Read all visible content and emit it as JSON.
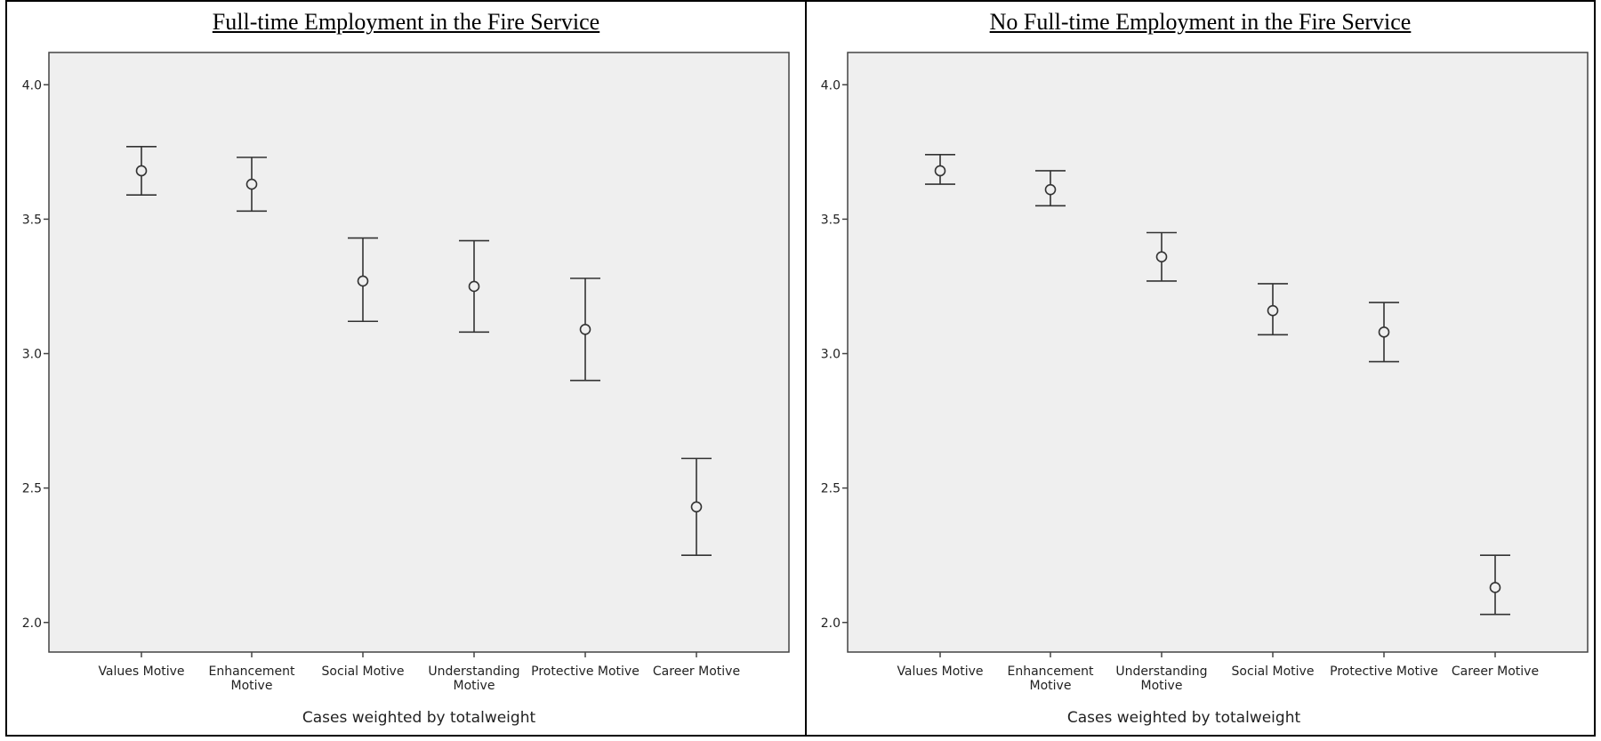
{
  "chart_data": [
    {
      "type": "errorbar",
      "title": "Full-time Employment in the Fire Service",
      "xlabel": "",
      "ylabel": "",
      "footnote": "Cases weighted by totalweight",
      "ylim": [
        1.89,
        4.12
      ],
      "yticks": [
        "2.0",
        "2.5",
        "3.0",
        "3.5",
        "4.0"
      ],
      "ytick_values": [
        2.0,
        2.5,
        3.0,
        3.5,
        4.0
      ],
      "categories": [
        [
          "Values Motive"
        ],
        [
          "Enhancement",
          "Motive"
        ],
        [
          "Social Motive"
        ],
        [
          "Understanding",
          "Motive"
        ],
        [
          "Protective Motive"
        ],
        [
          "Career Motive"
        ]
      ],
      "means": [
        3.68,
        3.63,
        3.27,
        3.25,
        3.09,
        2.43
      ],
      "lower": [
        3.59,
        3.53,
        3.12,
        3.08,
        2.9,
        2.25
      ],
      "upper": [
        3.77,
        3.73,
        3.43,
        3.42,
        3.28,
        2.61
      ],
      "grid": false,
      "plot_background": "#efefef"
    },
    {
      "type": "errorbar",
      "title": "No Full-time Employment in the Fire Service",
      "xlabel": "",
      "ylabel": "",
      "footnote": "Cases weighted by totalweight",
      "ylim": [
        1.89,
        4.12
      ],
      "yticks": [
        "2.0",
        "2.5",
        "3.0",
        "3.5",
        "4.0"
      ],
      "ytick_values": [
        2.0,
        2.5,
        3.0,
        3.5,
        4.0
      ],
      "categories": [
        [
          "Values Motive"
        ],
        [
          "Enhancement",
          "Motive"
        ],
        [
          "Understanding",
          "Motive"
        ],
        [
          "Social Motive"
        ],
        [
          "Protective Motive"
        ],
        [
          "Career Motive"
        ]
      ],
      "means": [
        3.68,
        3.61,
        3.36,
        3.16,
        3.08,
        2.13
      ],
      "lower": [
        3.63,
        3.55,
        3.27,
        3.07,
        2.97,
        2.03
      ],
      "upper": [
        3.74,
        3.68,
        3.45,
        3.26,
        3.19,
        2.25
      ],
      "grid": false,
      "plot_background": "#efefef"
    }
  ]
}
